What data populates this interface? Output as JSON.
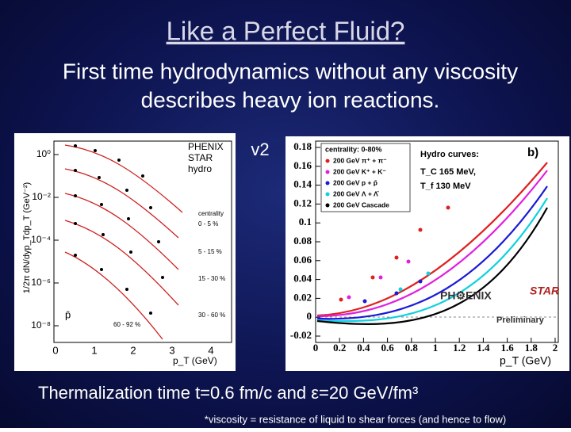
{
  "title": "Like a Perfect Fluid?",
  "subtitle": [
    "First time hydrodynamics without any viscosity",
    "describes heavy ion reactions."
  ],
  "left_plot": {
    "y_label": "1/2π dN/dyp_Tdp_T (GeV⁻²)",
    "x_label": "p_T (GeV)",
    "y_ticks": [
      "10⁰",
      "10⁻²",
      "10⁻⁴",
      "10⁻⁶",
      "10⁻⁸"
    ],
    "x_ticks": [
      "0",
      "1",
      "2",
      "3",
      "4"
    ],
    "legend": [
      "PHENIX",
      "STAR",
      "hydro"
    ],
    "centralities": [
      "centrality",
      "0 - 5 %",
      "5 - 15 %",
      "15 - 30 %",
      "30 - 60 %",
      "60 - 92 %"
    ],
    "particle": "p̄"
  },
  "right_plot": {
    "y_label": "v2",
    "x_label": "p_T (GeV)",
    "y_ticks": [
      "0.18",
      "0.16",
      "0.14",
      "0.12",
      "0.1",
      "0.08",
      "0.06",
      "0.04",
      "0.02",
      "0",
      "-0.02"
    ],
    "x_ticks": [
      "0",
      "0.2",
      "0.4",
      "0.6",
      "0.8",
      "1",
      "1.2",
      "1.4",
      "1.6",
      "1.8",
      "2"
    ],
    "legend_title": "centrality: 0-80%",
    "legend": [
      "200 GeV π⁺ + π⁻",
      "200 GeV K⁺ + K⁻",
      "200 GeV p + p̄",
      "200 GeV Λ + Λ̄",
      "200 GeV Cascade"
    ],
    "hydro_title": "Hydro curves:",
    "hydro_params": [
      "T_C   165 MeV,",
      "T_f   130 MeV"
    ],
    "panel": "b)",
    "logos": [
      "PH⚙ENIX",
      "STAR",
      "Preliminary"
    ]
  },
  "conclusion": "Thermalization time t=0.6 fm/c and ε=20 GeV/fm³",
  "footnote": "*viscosity = resistance of liquid to shear forces (and hence to flow)"
}
